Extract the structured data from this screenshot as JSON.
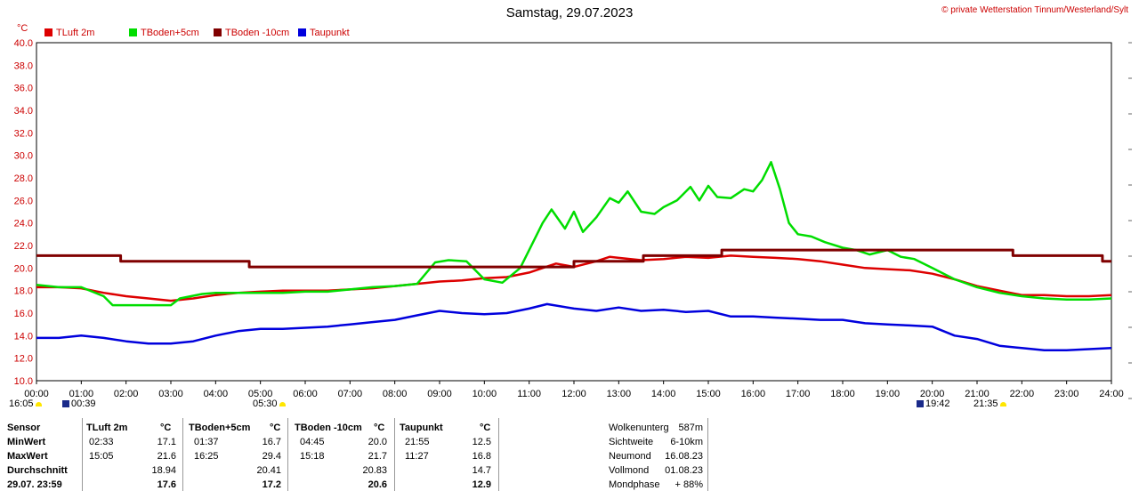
{
  "header": {
    "title": "Samstag, 29.07.2023",
    "copyright": "© private Wetterstation Tinnum/Westerland/Sylt",
    "unit": "°C"
  },
  "legend": [
    {
      "label": "TLuft 2m",
      "color": "#dd0000"
    },
    {
      "label": "TBoden+5cm",
      "color": "#00dd00"
    },
    {
      "label": "TBoden -10cm",
      "color": "#800000"
    },
    {
      "label": "Taupunkt",
      "color": "#0000dd"
    }
  ],
  "events": {
    "sunrise": "05:30",
    "sunset": "21:35",
    "moonset": "00:39",
    "moonrise": "19:42",
    "first": "16:05"
  },
  "chart_data": {
    "type": "line",
    "title": "Samstag, 29.07.2023",
    "ylabel": "°C",
    "ylim": [
      10,
      40
    ],
    "xlim": [
      0,
      24
    ],
    "grid": true,
    "legend_position": "top-left",
    "x_ticks": [
      "00:00",
      "01:00",
      "02:00",
      "03:00",
      "04:00",
      "05:00",
      "06:00",
      "07:00",
      "08:00",
      "09:00",
      "10:00",
      "11:00",
      "12:00",
      "13:00",
      "14:00",
      "15:00",
      "16:00",
      "17:00",
      "18:00",
      "19:00",
      "20:00",
      "21:00",
      "22:00",
      "23:00",
      "24:00"
    ],
    "y_ticks": [
      "10.0",
      "12.0",
      "14.0",
      "16.0",
      "18.0",
      "20.0",
      "22.0",
      "24.0",
      "26.0",
      "28.0",
      "30.0",
      "32.0",
      "34.0",
      "36.0",
      "38.0",
      "40.0"
    ],
    "series": [
      {
        "name": "TLuft 2m",
        "color": "#dd0000",
        "x": [
          0,
          0.5,
          1.0,
          1.5,
          2.0,
          2.5,
          3.0,
          3.5,
          4.0,
          4.5,
          5.0,
          5.5,
          6.0,
          6.5,
          7.0,
          7.5,
          8.0,
          8.5,
          9.0,
          9.5,
          10.0,
          10.5,
          11.0,
          11.3,
          11.6,
          12.0,
          12.5,
          12.8,
          13.0,
          13.5,
          14.0,
          14.5,
          15.0,
          15.5,
          16.0,
          16.5,
          17.0,
          17.5,
          18.0,
          18.5,
          19.0,
          19.5,
          20.0,
          20.5,
          21.0,
          21.5,
          22.0,
          22.5,
          23.0,
          23.5,
          24.0
        ],
        "y": [
          18.3,
          18.3,
          18.2,
          17.8,
          17.5,
          17.3,
          17.1,
          17.3,
          17.6,
          17.8,
          17.9,
          18.0,
          18.0,
          18.0,
          18.1,
          18.2,
          18.4,
          18.6,
          18.8,
          18.9,
          19.1,
          19.2,
          19.6,
          20.0,
          20.4,
          20.1,
          20.6,
          21.0,
          20.9,
          20.7,
          20.8,
          21.0,
          20.9,
          21.1,
          21.0,
          20.9,
          20.8,
          20.6,
          20.3,
          20.0,
          19.9,
          19.8,
          19.5,
          19.0,
          18.4,
          18.0,
          17.6,
          17.6,
          17.5,
          17.5,
          17.6
        ]
      },
      {
        "name": "TBoden+5cm",
        "color": "#00dd00",
        "x": [
          0,
          0.5,
          1.0,
          1.5,
          1.7,
          2.0,
          2.5,
          3.0,
          3.2,
          3.7,
          4.0,
          4.5,
          5.0,
          5.5,
          6.0,
          6.5,
          7.0,
          7.5,
          8.0,
          8.5,
          8.9,
          9.2,
          9.6,
          10.0,
          10.4,
          10.8,
          11.0,
          11.3,
          11.5,
          11.8,
          12.0,
          12.2,
          12.5,
          12.8,
          13.0,
          13.2,
          13.5,
          13.8,
          14.0,
          14.3,
          14.6,
          14.8,
          15.0,
          15.2,
          15.5,
          15.8,
          16.0,
          16.2,
          16.4,
          16.6,
          16.8,
          17.0,
          17.3,
          17.6,
          18.0,
          18.3,
          18.6,
          19.0,
          19.3,
          19.6,
          20.0,
          20.5,
          21.0,
          21.5,
          22.0,
          22.5,
          23.0,
          23.5,
          24.0
        ],
        "y": [
          18.5,
          18.3,
          18.3,
          17.5,
          16.7,
          16.7,
          16.7,
          16.7,
          17.3,
          17.7,
          17.8,
          17.8,
          17.8,
          17.8,
          17.9,
          17.9,
          18.1,
          18.3,
          18.4,
          18.6,
          20.5,
          20.7,
          20.6,
          19.0,
          18.7,
          20.0,
          21.6,
          24.0,
          25.2,
          23.5,
          25.0,
          23.2,
          24.5,
          26.2,
          25.8,
          26.8,
          25.0,
          24.8,
          25.4,
          26.0,
          27.2,
          26.0,
          27.3,
          26.3,
          26.2,
          27.0,
          26.8,
          27.8,
          29.4,
          27.0,
          24.0,
          23.0,
          22.8,
          22.3,
          21.8,
          21.6,
          21.2,
          21.6,
          21.0,
          20.8,
          20.0,
          19.0,
          18.3,
          17.8,
          17.5,
          17.3,
          17.2,
          17.2,
          17.3
        ]
      },
      {
        "name": "TBoden -10cm",
        "color": "#800000",
        "x": [
          0,
          1.88,
          1.88,
          4.75,
          4.75,
          12.0,
          12.0,
          13.55,
          13.55,
          15.3,
          15.3,
          21.8,
          21.8,
          23.8,
          23.8,
          24.0
        ],
        "y": [
          21.1,
          21.1,
          20.6,
          20.6,
          20.1,
          20.1,
          20.6,
          20.6,
          21.1,
          21.1,
          21.6,
          21.6,
          21.1,
          21.1,
          20.6,
          20.6
        ]
      },
      {
        "name": "Taupunkt",
        "color": "#0000dd",
        "x": [
          0,
          0.5,
          1.0,
          1.5,
          2.0,
          2.5,
          3.0,
          3.5,
          4.0,
          4.5,
          5.0,
          5.5,
          6.0,
          6.5,
          7.0,
          7.5,
          8.0,
          8.5,
          9.0,
          9.5,
          10.0,
          10.5,
          11.0,
          11.4,
          12.0,
          12.5,
          13.0,
          13.5,
          14.0,
          14.5,
          15.0,
          15.5,
          16.0,
          16.5,
          17.0,
          17.5,
          18.0,
          18.5,
          19.0,
          19.5,
          20.0,
          20.5,
          21.0,
          21.5,
          22.0,
          22.5,
          23.0,
          23.5,
          24.0
        ],
        "y": [
          13.8,
          13.8,
          14.0,
          13.8,
          13.5,
          13.3,
          13.3,
          13.5,
          14.0,
          14.4,
          14.6,
          14.6,
          14.7,
          14.8,
          15.0,
          15.2,
          15.4,
          15.8,
          16.2,
          16.0,
          15.9,
          16.0,
          16.4,
          16.8,
          16.4,
          16.2,
          16.5,
          16.2,
          16.3,
          16.1,
          16.2,
          15.7,
          15.7,
          15.6,
          15.5,
          15.4,
          15.4,
          15.1,
          15.0,
          14.9,
          14.8,
          14.0,
          13.7,
          13.1,
          12.9,
          12.7,
          12.7,
          12.8,
          12.9
        ]
      }
    ]
  },
  "stats": {
    "headers": {
      "sensor": "Sensor",
      "unit": "°C",
      "cols": [
        "TLuft 2m",
        "TBoden+5cm",
        "TBoden -10cm",
        "Taupunkt"
      ]
    },
    "rows": [
      {
        "label": "MinWert",
        "cells": [
          [
            "02:33",
            "17.1"
          ],
          [
            "01:37",
            "16.7"
          ],
          [
            "04:45",
            "20.0"
          ],
          [
            "21:55",
            "12.5"
          ]
        ]
      },
      {
        "label": "MaxWert",
        "cells": [
          [
            "15:05",
            "21.6"
          ],
          [
            "16:25",
            "29.4"
          ],
          [
            "15:18",
            "21.7"
          ],
          [
            "11:27",
            "16.8"
          ]
        ]
      },
      {
        "label": "Durchschnitt",
        "cells": [
          [
            "",
            "18.94"
          ],
          [
            "",
            "20.41"
          ],
          [
            "",
            "20.83"
          ],
          [
            "",
            "14.7"
          ]
        ]
      },
      {
        "label": "29.07.  23:59",
        "cells": [
          [
            "",
            "17.6"
          ],
          [
            "",
            "17.2"
          ],
          [
            "",
            "20.6"
          ],
          [
            "",
            "12.9"
          ]
        ]
      }
    ],
    "info": [
      {
        "label": "Wolkenunterg",
        "value": "587m"
      },
      {
        "label": "Sichtweite",
        "value": "6-10km"
      },
      {
        "label": "Neumond",
        "value": "16.08.23"
      },
      {
        "label": "Vollmond",
        "value": "01.08.23"
      },
      {
        "label": "Mondphase",
        "value": "+ 88%"
      }
    ]
  }
}
